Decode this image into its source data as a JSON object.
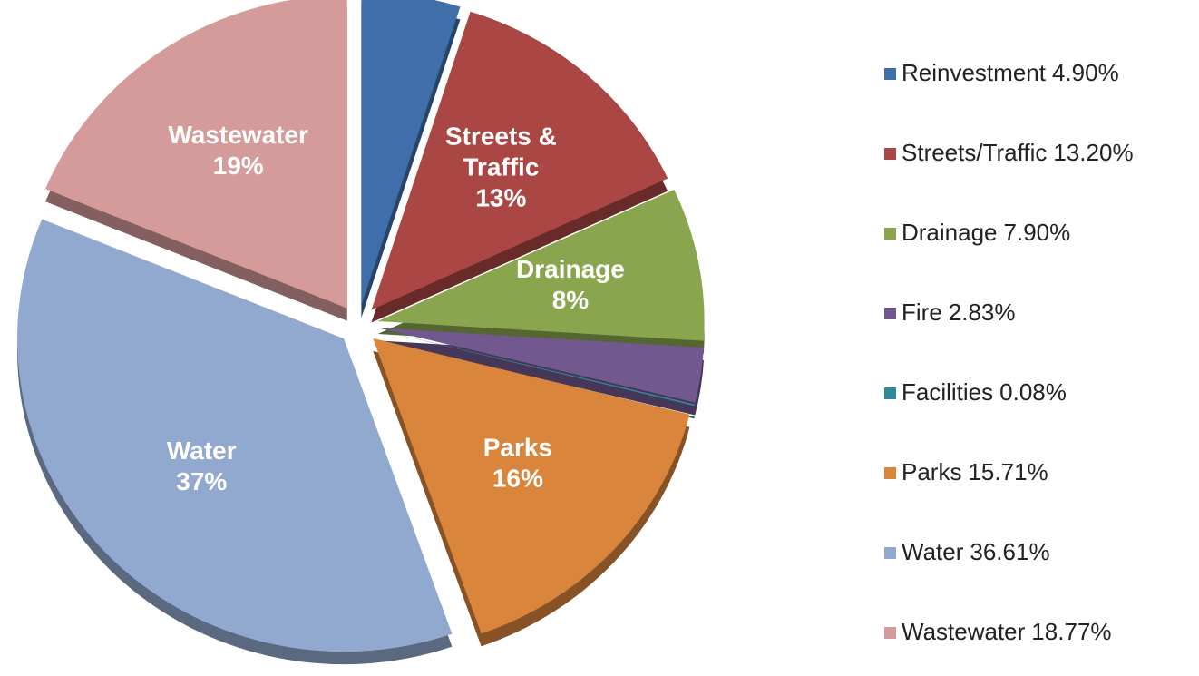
{
  "chart_data": {
    "type": "pie",
    "categories": [
      "Reinvestment",
      "Streets/Traffic",
      "Drainage",
      "Fire",
      "Facilities",
      "Parks",
      "Water",
      "Wastewater"
    ],
    "values": [
      4.9,
      13.2,
      7.9,
      2.83,
      0.08,
      15.71,
      36.61,
      18.77
    ],
    "value_labels": [
      "4.90%",
      "13.20%",
      "7.90%",
      "2.83%",
      "0.08%",
      "15.71%",
      "36.61%",
      "18.77%"
    ],
    "colors": [
      "#3f6faa",
      "#aa4643",
      "#89a54e",
      "#71588f",
      "#2f8b9a",
      "#d9853b",
      "#91a8cf",
      "#d49b9a"
    ],
    "slice_names": [
      null,
      [
        "Streets &",
        "Traffic"
      ],
      [
        "Drainage"
      ],
      null,
      null,
      [
        "Parks"
      ],
      [
        "Water"
      ],
      [
        "Wastewater"
      ]
    ],
    "slice_value_labels": [
      null,
      "13%",
      "8%",
      null,
      null,
      "16%",
      "37%",
      "19%"
    ],
    "legend": "right"
  }
}
